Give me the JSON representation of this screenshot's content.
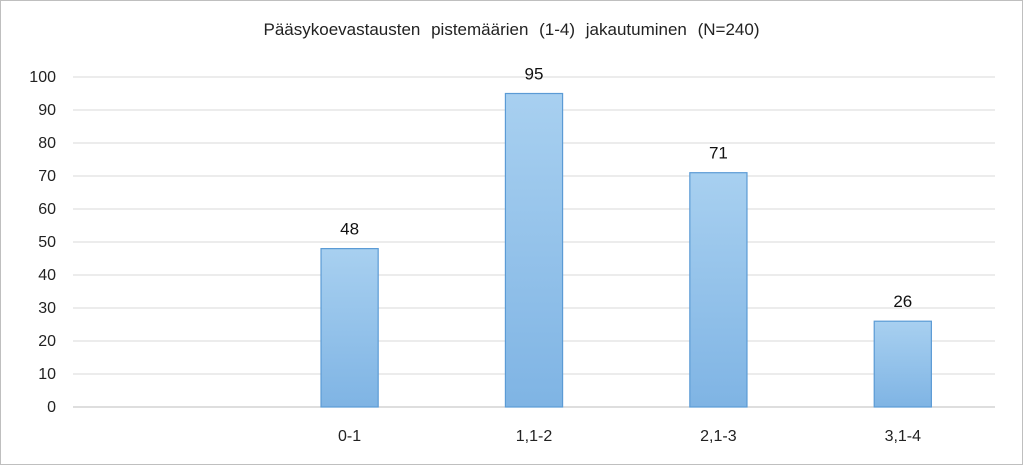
{
  "chart_data": {
    "type": "bar",
    "title": "Pääsykoevastausten pistemäärien (1-4) jakautuminen (N=240)",
    "categories": [
      "",
      "0-1",
      "1,1-2",
      "2,1-3",
      "3,1-4"
    ],
    "values": [
      null,
      48,
      95,
      71,
      26
    ],
    "ylim": [
      0,
      100
    ],
    "yticks": [
      0,
      10,
      20,
      30,
      40,
      50,
      60,
      70,
      80,
      90,
      100
    ],
    "grid": true,
    "data_labels": true,
    "bar_color": "#8bbfe8",
    "bar_border": "#5b9bd5"
  }
}
